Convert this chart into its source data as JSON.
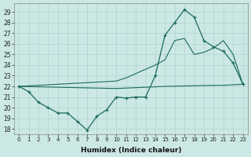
{
  "xlabel": "Humidex (Indice chaleur)",
  "bg_color": "#cce8e4",
  "grid_color": "#aaccca",
  "line_color": "#1a6b5e",
  "xlim": [
    -0.5,
    23.5
  ],
  "ylim": [
    17.5,
    29.8
  ],
  "yticks": [
    18,
    19,
    20,
    21,
    22,
    23,
    24,
    25,
    26,
    27,
    28,
    29
  ],
  "xticks": [
    0,
    1,
    2,
    3,
    4,
    5,
    6,
    7,
    8,
    9,
    10,
    11,
    12,
    13,
    14,
    15,
    16,
    17,
    18,
    19,
    20,
    21,
    22,
    23
  ],
  "series1_x": [
    0,
    1,
    2,
    3,
    4,
    5,
    6,
    7,
    8,
    9,
    10,
    11,
    12,
    13,
    14,
    15,
    16,
    17,
    18,
    19,
    20,
    21,
    22,
    23
  ],
  "series1_y": [
    22.0,
    21.5,
    20.5,
    20.0,
    19.5,
    19.5,
    18.7,
    17.9,
    19.2,
    19.8,
    21.0,
    20.9,
    21.0,
    21.0,
    23.0,
    26.8,
    28.0,
    29.2,
    28.5,
    26.3,
    25.7,
    25.3,
    24.2,
    22.2
  ],
  "series2_x": [
    0,
    10,
    11,
    12,
    13,
    14,
    15,
    16,
    17,
    18,
    19,
    20,
    21,
    22,
    23
  ],
  "series2_y": [
    22.0,
    22.5,
    22.8,
    23.2,
    23.6,
    24.0,
    24.5,
    26.3,
    26.5,
    25.0,
    25.2,
    25.6,
    26.3,
    25.0,
    22.2
  ],
  "series3_x": [
    0,
    10,
    15,
    20,
    21,
    22,
    23
  ],
  "series3_y": [
    22.0,
    21.8,
    22.0,
    22.1,
    22.1,
    22.15,
    22.2
  ]
}
